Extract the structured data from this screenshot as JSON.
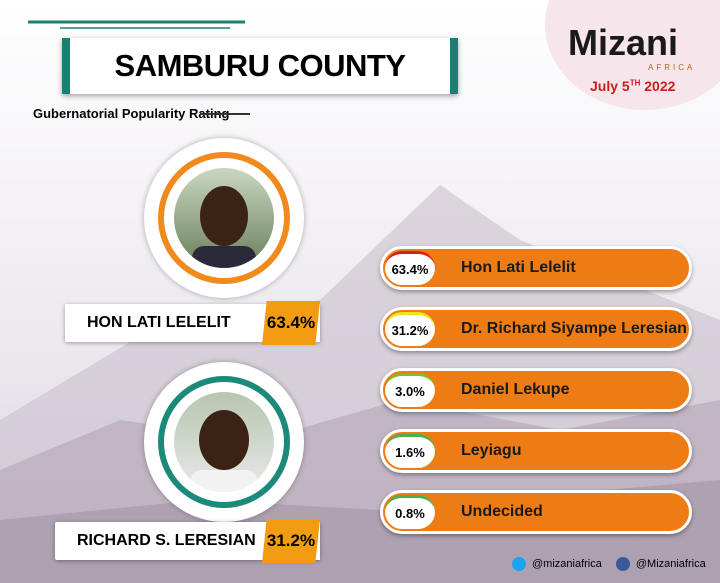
{
  "header": {
    "title": "SAMBURU COUNTY",
    "subtitle": "Gubernatorial Popularity Rating"
  },
  "brand": {
    "name": "Mizani",
    "tagline": "AFRICA",
    "date": {
      "text": "July 5",
      "suffix": "TH",
      "year": "2022"
    }
  },
  "featured": [
    {
      "name": "HON LATI LELELIT",
      "percent": "63.4%"
    },
    {
      "name": "RICHARD S. LERESIAN",
      "percent": "31.2%"
    }
  ],
  "results": [
    {
      "percent": "63.4%",
      "name": "Hon Lati Lelelit"
    },
    {
      "percent": "31.2%",
      "name": "Dr. Richard Siyampe Leresian"
    },
    {
      "percent": "3.0%",
      "name": "Daniel Lekupe"
    },
    {
      "percent": "1.6%",
      "name": "Leyiagu"
    },
    {
      "percent": "0.8%",
      "name": "Undecided"
    }
  ],
  "social": {
    "twitter": "@mizaniafrica",
    "facebook": "@Mizaniafrica"
  }
}
